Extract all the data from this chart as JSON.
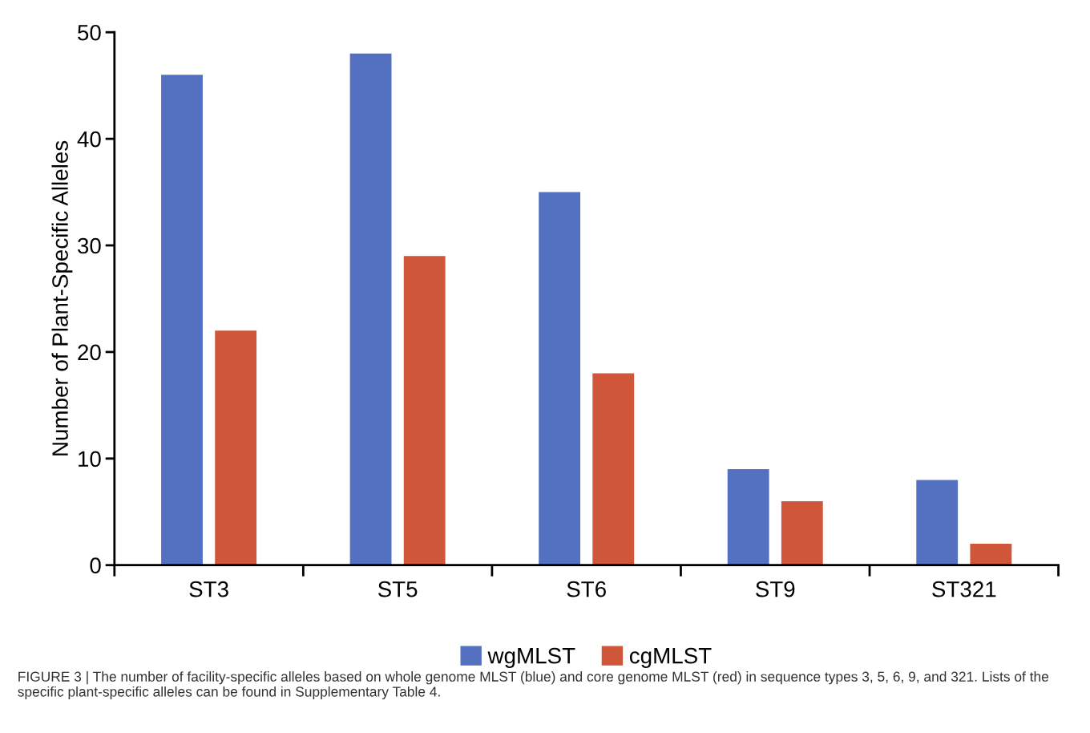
{
  "chart_data": {
    "type": "bar",
    "ylabel": "Number of Plant-Specific Alleles",
    "categories": [
      "ST3",
      "ST5",
      "ST6",
      "ST9",
      "ST321"
    ],
    "series": [
      {
        "name": "wgMLST",
        "color": "#5470c1",
        "values": [
          46,
          48,
          35,
          9,
          8
        ]
      },
      {
        "name": "cgMLST",
        "color": "#d0563a",
        "values": [
          22,
          29,
          18,
          6,
          2
        ]
      }
    ],
    "ylim": [
      0,
      50
    ],
    "yticks": [
      0,
      10,
      20,
      30,
      40,
      50
    ],
    "grid": false,
    "legend": "bottom",
    "annotations": [
      "FIGURE 3 | The number of facility-specific alleles based on whole genome MLST (blue) and core genome MLST (red) in sequence types 3, 5, 6, 9, and 321. Lists of the specific plant-specific alleles can be found in Supplementary Table 4."
    ]
  }
}
